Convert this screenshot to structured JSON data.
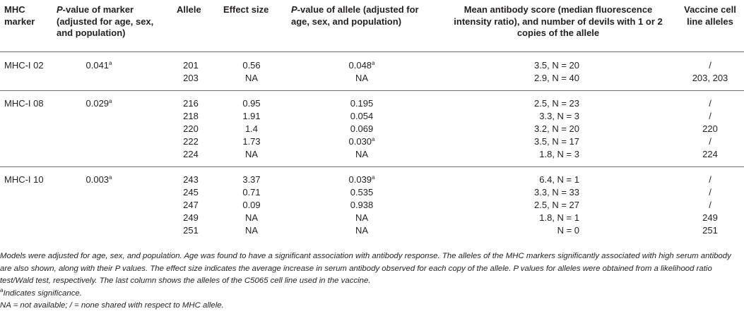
{
  "headers": {
    "marker": "MHC marker",
    "p_marker_italic": "P",
    "p_marker_rest": "-value of marker (adjusted for age, sex, and population)",
    "allele": "Allele",
    "effect": "Effect size",
    "p_allele_italic": "P",
    "p_allele_rest": "-value of allele (adjusted for age, sex, and population)",
    "mean": "Mean antibody score (median fluorescence intensity ratio), and number of devils with 1 or 2 copies of the allele",
    "vaccine": "Vaccine cell line alleles"
  },
  "groups": [
    {
      "marker": "MHC-I 02",
      "p_marker": "0.041",
      "p_marker_sup": "a",
      "rows": [
        {
          "allele": "201",
          "effect": "0.56",
          "p": "0.048",
          "p_sup": "a",
          "mean": "3.5, N = 20",
          "vaccine": "/"
        },
        {
          "allele": "203",
          "effect": "NA",
          "p": "NA",
          "p_sup": "",
          "mean": "2.9, N = 40",
          "vaccine": "203, 203"
        }
      ]
    },
    {
      "marker": "MHC-I 08",
      "p_marker": "0.029",
      "p_marker_sup": "a",
      "rows": [
        {
          "allele": "216",
          "effect": "0.95",
          "p": "0.195",
          "p_sup": "",
          "mean": "2.5, N = 23",
          "vaccine": "/"
        },
        {
          "allele": "218",
          "effect": "1.91",
          "p": "0.054",
          "p_sup": "",
          "mean": "3.3, N = 3",
          "vaccine": "/"
        },
        {
          "allele": "220",
          "effect": "1.4",
          "p": "0.069",
          "p_sup": "",
          "mean": "3.2, N = 20",
          "vaccine": "220"
        },
        {
          "allele": "222",
          "effect": "1.73",
          "p": "0.030",
          "p_sup": "a",
          "mean": "3.5, N = 17",
          "vaccine": "/"
        },
        {
          "allele": "224",
          "effect": "NA",
          "p": "NA",
          "p_sup": "",
          "mean": "1.8, N = 3",
          "vaccine": "224"
        }
      ]
    },
    {
      "marker": "MHC-I 10",
      "p_marker": "0.003",
      "p_marker_sup": "a",
      "rows": [
        {
          "allele": "243",
          "effect": "3.37",
          "p": "0.039",
          "p_sup": "a",
          "mean": "6.4, N = 1",
          "vaccine": "/"
        },
        {
          "allele": "245",
          "effect": "0.71",
          "p": "0.535",
          "p_sup": "",
          "mean": "3.3, N = 33",
          "vaccine": "/"
        },
        {
          "allele": "247",
          "effect": "0.09",
          "p": "0.938",
          "p_sup": "",
          "mean": "2.5, N = 27",
          "vaccine": "/"
        },
        {
          "allele": "249",
          "effect": "NA",
          "p": "NA",
          "p_sup": "",
          "mean": "1.8, N = 1",
          "vaccine": "249"
        },
        {
          "allele": "251",
          "effect": "NA",
          "p": "NA",
          "p_sup": "",
          "mean": "N = 0",
          "vaccine": "251"
        }
      ]
    }
  ],
  "notes": {
    "main": "Models were adjusted for age, sex, and population. Age was found to have a significant association with antibody response. The alleles of the MHC markers significantly associated with high serum antibody are also shown, along with their P values. The effect size indicates the average increase in serum antibody observed for each copy of the allele. P values for alleles were obtained from a likelihood ratio test/Wald test, respectively. The last column shows the alleles of the C5065 cell line used in the vaccine.",
    "sig_sup": "a",
    "sig_text": "Indicates significance.",
    "na": "NA = not available; / = none shared with respect to MHC allele."
  }
}
